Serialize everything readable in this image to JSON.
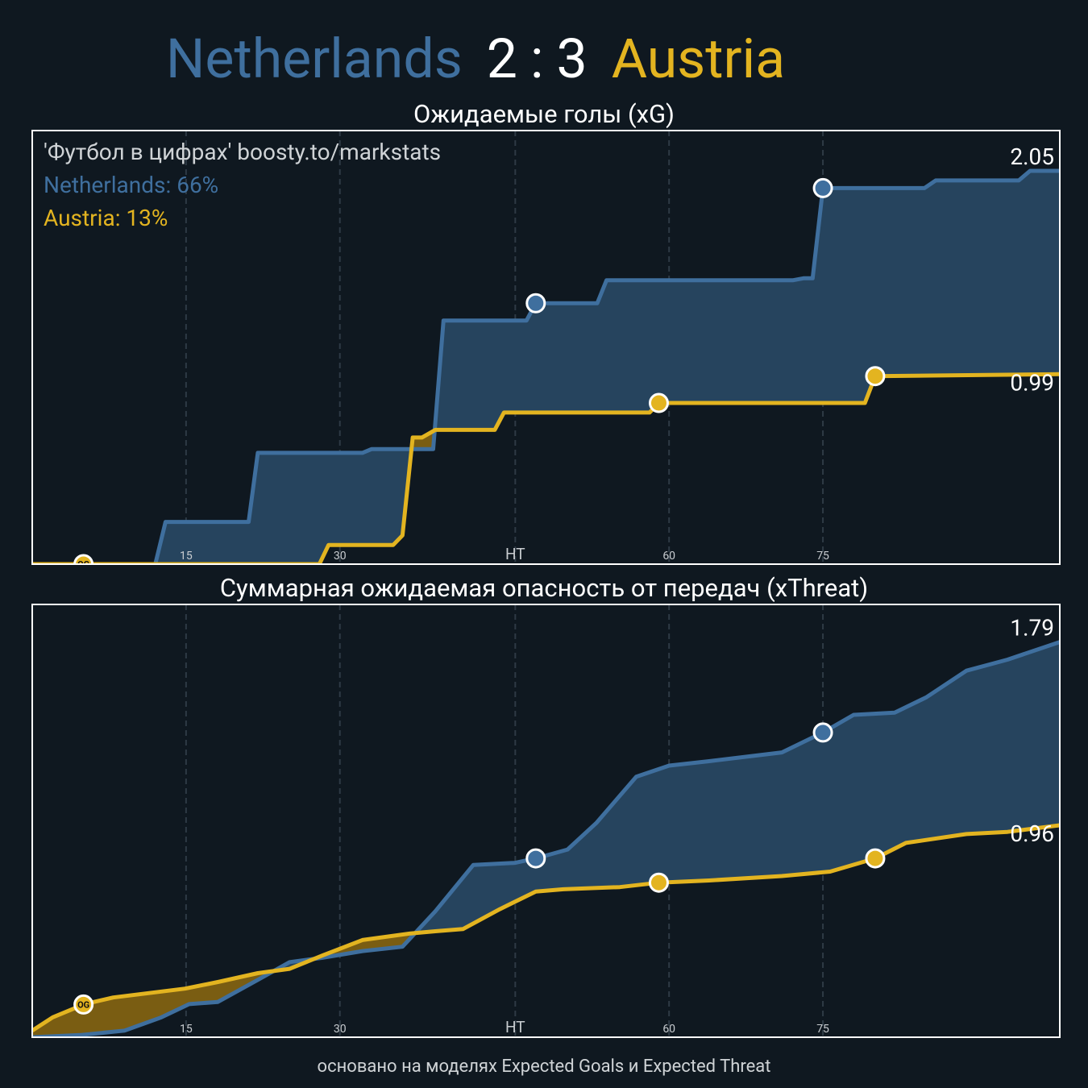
{
  "header": {
    "home": "Netherlands",
    "score_home": 2,
    "separator": ":",
    "score_away": 3,
    "away": "Austria"
  },
  "chart_data": [
    {
      "type": "line",
      "title": "Ожидаемые голы (xG)",
      "xlim": [
        0,
        100.2
      ],
      "ylim": [
        0,
        2.26
      ],
      "xticks": [
        15,
        30,
        {
          "value": 47.1,
          "label": "HT"
        },
        {
          "value": 62.1,
          "label": "60"
        },
        {
          "value": 77.1,
          "label": "75"
        }
      ],
      "grid": true,
      "own_goal_label": "OG",
      "annotations": [
        "'Футбол в цифрах' boosty.to/markstats",
        "Netherlands: 66%",
        "Austria: 13%"
      ],
      "series": [
        {
          "name": "Netherlands",
          "color": "#3f6f9e",
          "goals": [
            49.1,
            77.1
          ],
          "x": [
            0,
            12.0,
            13.0,
            21.1,
            22.0,
            32.2,
            33.1,
            39.1,
            40.1,
            48.2,
            49.1,
            55.1,
            56.0,
            74.2,
            75.2,
            76.1,
            77.1,
            87.0,
            88.1,
            96.2,
            97.3,
            100.2
          ],
          "values": [
            0,
            0,
            0.22,
            0.22,
            0.58,
            0.58,
            0.6,
            0.6,
            1.27,
            1.27,
            1.36,
            1.36,
            1.48,
            1.48,
            1.49,
            1.49,
            1.96,
            1.96,
            2.0,
            2.0,
            2.05,
            2.05
          ]
        },
        {
          "name": "Austria",
          "color": "#e3b420",
          "goals": [
            61.1,
            82.2
          ],
          "own_goals": [
            5.0
          ],
          "x": [
            0,
            28.0,
            28.9,
            35.2,
            36.1,
            37.1,
            38.0,
            39.3,
            45.1,
            46.0,
            60.2,
            61.1,
            81.2,
            82.2,
            100.2
          ],
          "values": [
            0,
            0,
            0.1,
            0.1,
            0.15,
            0.66,
            0.66,
            0.7,
            0.7,
            0.79,
            0.79,
            0.84,
            0.84,
            0.98,
            0.99
          ]
        }
      ]
    },
    {
      "type": "line",
      "title": "Суммарная ожидаемая опасность от передач (xThreat)",
      "xlim": [
        0,
        100.2
      ],
      "ylim": [
        0,
        1.96
      ],
      "xticks": [
        15,
        30,
        {
          "value": 47.1,
          "label": "HT"
        },
        {
          "value": 62.1,
          "label": "60"
        },
        {
          "value": 77.1,
          "label": "75"
        }
      ],
      "grid": true,
      "own_goal_label": "OG",
      "series": [
        {
          "name": "Netherlands",
          "color": "#3f6f9e",
          "goals": [
            49.1,
            77.1
          ],
          "x": [
            0,
            4.7,
            9.0,
            12.6,
            15.3,
            18.1,
            22.0,
            25.1,
            28.3,
            32.2,
            36.1,
            39.3,
            43.0,
            47.1,
            49.1,
            52.2,
            55.0,
            58.9,
            62.1,
            66.0,
            73.1,
            77.1,
            80.1,
            84.1,
            87.2,
            91.1,
            95.1,
            100.2
          ],
          "values": [
            0,
            0.01,
            0.03,
            0.09,
            0.15,
            0.16,
            0.26,
            0.34,
            0.36,
            0.39,
            0.41,
            0.57,
            0.78,
            0.79,
            0.81,
            0.85,
            0.97,
            1.18,
            1.23,
            1.25,
            1.29,
            1.38,
            1.46,
            1.47,
            1.54,
            1.66,
            1.71,
            1.79
          ]
        },
        {
          "name": "Austria",
          "color": "#e3b420",
          "goals": [
            61.1,
            82.2
          ],
          "own_goals": [
            5.0
          ],
          "x": [
            0,
            2.0,
            5.1,
            7.9,
            14.9,
            18.1,
            22.0,
            25.1,
            28.3,
            32.2,
            36.9,
            39.3,
            42.0,
            45.6,
            49.1,
            51.8,
            57.3,
            61.1,
            66.0,
            73.1,
            77.8,
            82.2,
            85.2,
            91.1,
            95.1,
            100.2
          ],
          "values": [
            0.03,
            0.09,
            0.15,
            0.18,
            0.22,
            0.25,
            0.29,
            0.31,
            0.37,
            0.44,
            0.47,
            0.48,
            0.49,
            0.58,
            0.66,
            0.67,
            0.68,
            0.7,
            0.71,
            0.73,
            0.75,
            0.81,
            0.88,
            0.92,
            0.93,
            0.96
          ]
        }
      ]
    }
  ],
  "footer": "основано на моделях Expected Goals и Expected Threat"
}
